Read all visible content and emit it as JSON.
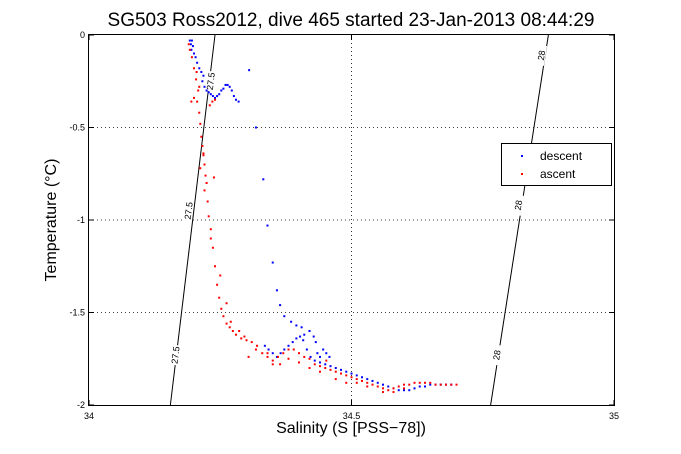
{
  "chart_data": {
    "type": "scatter",
    "title": "SG503 Ross2012, dive 465 started 23-Jan-2013 08:44:29",
    "xlabel": "Salinity (S [PSS−78])",
    "ylabel": "Temperature (°C)",
    "xlim": [
      34,
      35
    ],
    "ylim": [
      -2,
      0
    ],
    "xticks": [
      34,
      34.5,
      35
    ],
    "xtick_labels": [
      "34",
      "34.5",
      "35"
    ],
    "yticks": [
      0,
      -0.5,
      -1,
      -1.5,
      -2
    ],
    "ytick_labels": [
      "0",
      "-0.5",
      "-1",
      "-1.5",
      "-2"
    ],
    "grid": true,
    "legend_position": "right",
    "legend": [
      {
        "label": "descent",
        "color": "#0000ff"
      },
      {
        "label": "ascent",
        "color": "#ff0000"
      }
    ],
    "contours": [
      {
        "label": "27.5",
        "points": [
          [
            34.155,
            -2.0
          ],
          [
            34.24,
            0.0
          ]
        ],
        "labels_at": [
          [
            34.165,
            -1.73
          ],
          [
            34.19,
            -0.95
          ],
          [
            34.232,
            -0.25
          ]
        ]
      },
      {
        "label": "28",
        "points": [
          [
            34.765,
            -2.0
          ],
          [
            34.875,
            0.0
          ]
        ],
        "labels_at": [
          [
            34.777,
            -1.73
          ],
          [
            34.818,
            -0.92
          ],
          [
            34.862,
            -0.11
          ]
        ]
      }
    ],
    "series": [
      {
        "name": "descent",
        "color": "#0000ff",
        "points": [
          [
            34.192,
            -0.03
          ],
          [
            34.196,
            -0.03
          ],
          [
            34.194,
            -0.05
          ],
          [
            34.198,
            -0.06
          ],
          [
            34.195,
            -0.08
          ],
          [
            34.2,
            -0.1
          ],
          [
            34.203,
            -0.12
          ],
          [
            34.206,
            -0.15
          ],
          [
            34.21,
            -0.18
          ],
          [
            34.214,
            -0.2
          ],
          [
            34.218,
            -0.22
          ],
          [
            34.216,
            -0.25
          ],
          [
            34.22,
            -0.28
          ],
          [
            34.224,
            -0.3
          ],
          [
            34.228,
            -0.31
          ],
          [
            34.232,
            -0.32
          ],
          [
            34.236,
            -0.33
          ],
          [
            34.24,
            -0.34
          ],
          [
            34.244,
            -0.33
          ],
          [
            34.248,
            -0.32
          ],
          [
            34.252,
            -0.3
          ],
          [
            34.256,
            -0.29
          ],
          [
            34.26,
            -0.27
          ],
          [
            34.264,
            -0.27
          ],
          [
            34.268,
            -0.28
          ],
          [
            34.272,
            -0.3
          ],
          [
            34.276,
            -0.33
          ],
          [
            34.28,
            -0.35
          ],
          [
            34.285,
            -0.36
          ],
          [
            34.305,
            -0.19
          ],
          [
            34.318,
            -0.5
          ],
          [
            34.332,
            -0.78
          ],
          [
            34.34,
            -1.03
          ],
          [
            34.35,
            -1.23
          ],
          [
            34.358,
            -1.38
          ],
          [
            34.364,
            -1.46
          ],
          [
            34.372,
            -1.52
          ],
          [
            34.385,
            -1.55
          ],
          [
            34.395,
            -1.57
          ],
          [
            34.405,
            -1.58
          ],
          [
            34.41,
            -1.62
          ],
          [
            34.42,
            -1.6
          ],
          [
            34.428,
            -1.63
          ],
          [
            34.432,
            -1.66
          ],
          [
            34.435,
            -1.72
          ],
          [
            34.44,
            -1.74
          ],
          [
            34.446,
            -1.7
          ],
          [
            34.452,
            -1.72
          ],
          [
            34.458,
            -1.74
          ],
          [
            34.335,
            -1.68
          ],
          [
            34.342,
            -1.7
          ],
          [
            34.35,
            -1.72
          ],
          [
            34.358,
            -1.74
          ],
          [
            34.365,
            -1.72
          ],
          [
            34.372,
            -1.7
          ],
          [
            34.38,
            -1.68
          ],
          [
            34.388,
            -1.66
          ],
          [
            34.395,
            -1.64
          ],
          [
            34.402,
            -1.63
          ],
          [
            34.408,
            -1.65
          ],
          [
            34.415,
            -1.7
          ],
          [
            34.422,
            -1.74
          ],
          [
            34.43,
            -1.76
          ],
          [
            34.44,
            -1.77
          ],
          [
            34.45,
            -1.78
          ],
          [
            34.46,
            -1.79
          ],
          [
            34.47,
            -1.8
          ],
          [
            34.48,
            -1.81
          ],
          [
            34.49,
            -1.82
          ],
          [
            34.5,
            -1.83
          ],
          [
            34.51,
            -1.84
          ],
          [
            34.52,
            -1.85
          ],
          [
            34.53,
            -1.86
          ],
          [
            34.54,
            -1.87
          ],
          [
            34.55,
            -1.88
          ],
          [
            34.56,
            -1.89
          ],
          [
            34.57,
            -1.9
          ],
          [
            34.58,
            -1.91
          ],
          [
            34.59,
            -1.92
          ],
          [
            34.6,
            -1.92
          ],
          [
            34.61,
            -1.92
          ],
          [
            34.62,
            -1.91
          ],
          [
            34.63,
            -1.9
          ],
          [
            34.64,
            -1.9
          ],
          [
            34.65,
            -1.89
          ],
          [
            34.66,
            -1.89
          ],
          [
            34.67,
            -1.89
          ],
          [
            34.68,
            -1.89
          ],
          [
            34.69,
            -1.89
          ]
        ]
      },
      {
        "name": "ascent",
        "color": "#ff0000",
        "points": [
          [
            34.19,
            -0.05
          ],
          [
            34.192,
            -0.08
          ],
          [
            34.196,
            -0.12
          ],
          [
            34.2,
            -0.18
          ],
          [
            34.204,
            -0.24
          ],
          [
            34.208,
            -0.3
          ],
          [
            34.206,
            -0.36
          ],
          [
            34.21,
            -0.42
          ],
          [
            34.212,
            -0.48
          ],
          [
            34.214,
            -0.55
          ],
          [
            34.216,
            -0.6
          ],
          [
            34.218,
            -0.65
          ],
          [
            34.22,
            -0.7
          ],
          [
            34.222,
            -0.76
          ],
          [
            34.224,
            -0.8
          ],
          [
            34.22,
            -0.84
          ],
          [
            34.226,
            -0.9
          ],
          [
            34.228,
            -0.98
          ],
          [
            34.232,
            -1.05
          ],
          [
            34.236,
            -1.15
          ],
          [
            34.24,
            -1.25
          ],
          [
            34.244,
            -1.35
          ],
          [
            34.248,
            -1.42
          ],
          [
            34.252,
            -1.48
          ],
          [
            34.256,
            -1.52
          ],
          [
            34.262,
            -1.56
          ],
          [
            34.268,
            -1.58
          ],
          [
            34.274,
            -1.6
          ],
          [
            34.28,
            -1.62
          ],
          [
            34.29,
            -1.64
          ],
          [
            34.3,
            -1.65
          ],
          [
            34.31,
            -1.66
          ],
          [
            34.32,
            -1.68
          ],
          [
            34.33,
            -1.72
          ],
          [
            34.34,
            -1.74
          ],
          [
            34.35,
            -1.76
          ],
          [
            34.36,
            -1.74
          ],
          [
            34.37,
            -1.72
          ],
          [
            34.38,
            -1.7
          ],
          [
            34.39,
            -1.7
          ],
          [
            34.4,
            -1.72
          ],
          [
            34.41,
            -1.74
          ],
          [
            34.42,
            -1.75
          ],
          [
            34.43,
            -1.78
          ],
          [
            34.44,
            -1.79
          ],
          [
            34.45,
            -1.8
          ],
          [
            34.46,
            -1.81
          ],
          [
            34.47,
            -1.82
          ],
          [
            34.48,
            -1.83
          ],
          [
            34.49,
            -1.84
          ],
          [
            34.5,
            -1.85
          ],
          [
            34.51,
            -1.86
          ],
          [
            34.52,
            -1.87
          ],
          [
            34.53,
            -1.88
          ],
          [
            34.54,
            -1.89
          ],
          [
            34.55,
            -1.9
          ],
          [
            34.56,
            -1.91
          ],
          [
            34.57,
            -1.92
          ],
          [
            34.58,
            -1.91
          ],
          [
            34.59,
            -1.9
          ],
          [
            34.6,
            -1.89
          ],
          [
            34.61,
            -1.89
          ],
          [
            34.62,
            -1.88
          ],
          [
            34.63,
            -1.88
          ],
          [
            34.64,
            -1.88
          ],
          [
            34.65,
            -1.88
          ],
          [
            34.66,
            -1.89
          ],
          [
            34.67,
            -1.89
          ],
          [
            34.68,
            -1.89
          ],
          [
            34.69,
            -1.89
          ],
          [
            34.7,
            -1.89
          ],
          [
            34.205,
            -0.2
          ],
          [
            34.21,
            -0.28
          ],
          [
            34.2,
            -0.34
          ],
          [
            34.195,
            -0.36
          ],
          [
            34.23,
            -0.38
          ],
          [
            34.235,
            -0.36
          ],
          [
            34.24,
            -0.35
          ],
          [
            34.212,
            -0.72
          ],
          [
            34.218,
            -0.64
          ],
          [
            34.238,
            -0.77
          ],
          [
            34.232,
            -1.1
          ],
          [
            34.25,
            -1.3
          ],
          [
            34.262,
            -1.45
          ],
          [
            34.27,
            -1.55
          ],
          [
            34.286,
            -1.6
          ],
          [
            34.296,
            -1.63
          ],
          [
            34.304,
            -1.74
          ],
          [
            34.318,
            -1.7
          ],
          [
            34.34,
            -1.72
          ],
          [
            34.35,
            -1.78
          ],
          [
            34.364,
            -1.78
          ],
          [
            34.38,
            -1.75
          ],
          [
            34.4,
            -1.77
          ],
          [
            34.42,
            -1.8
          ],
          [
            34.44,
            -1.82
          ],
          [
            34.452,
            -1.76
          ],
          [
            34.47,
            -1.86
          ],
          [
            34.49,
            -1.88
          ],
          [
            34.51,
            -1.88
          ],
          [
            34.53,
            -1.9
          ],
          [
            34.56,
            -1.93
          ],
          [
            34.58,
            -1.93
          ],
          [
            34.6,
            -1.91
          ]
        ]
      }
    ]
  }
}
